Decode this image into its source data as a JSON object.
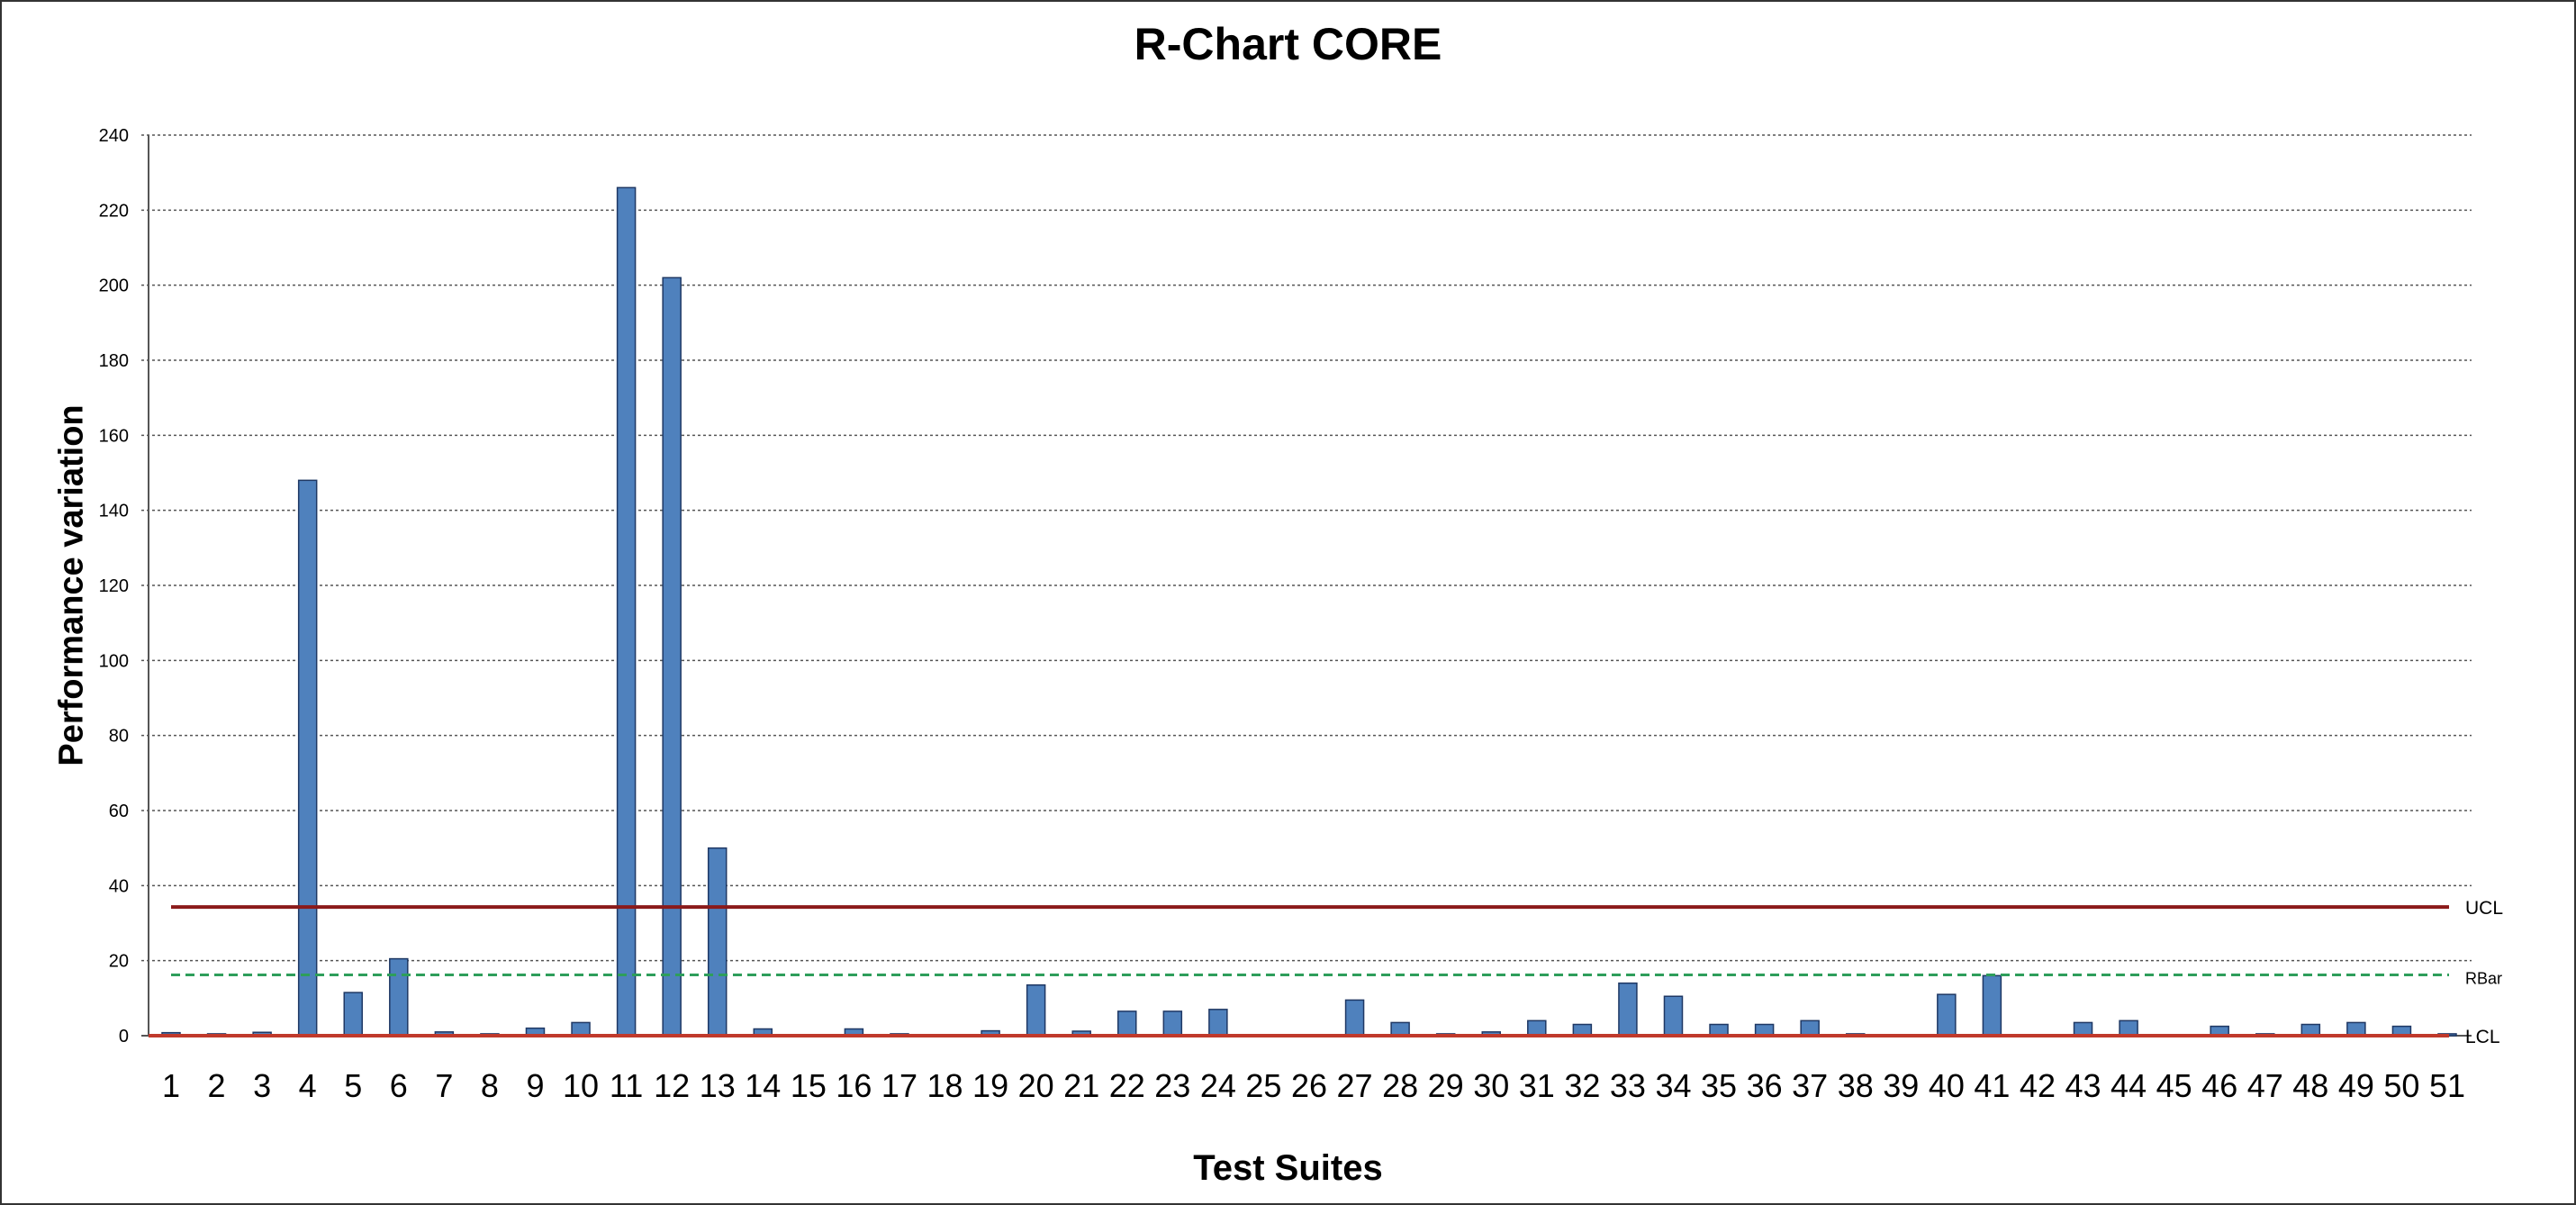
{
  "chart_data": {
    "type": "bar",
    "title": "R-Chart CORE",
    "xlabel": "Test Suites",
    "ylabel": "Performance variation",
    "ylim": [
      0,
      240
    ],
    "yticks": [
      0,
      20,
      40,
      60,
      80,
      100,
      120,
      140,
      160,
      180,
      200,
      220,
      240
    ],
    "grid": true,
    "categories": [
      "1",
      "2",
      "3",
      "4",
      "5",
      "6",
      "7",
      "8",
      "9",
      "10",
      "11",
      "12",
      "13",
      "14",
      "15",
      "16",
      "17",
      "18",
      "19",
      "20",
      "21",
      "22",
      "23",
      "24",
      "25",
      "26",
      "27",
      "28",
      "29",
      "30",
      "31",
      "32",
      "33",
      "34",
      "35",
      "36",
      "37",
      "38",
      "39",
      "40",
      "41",
      "42",
      "43",
      "44",
      "45",
      "46",
      "47",
      "48",
      "49",
      "50",
      "51"
    ],
    "series": [
      {
        "values": [
          0.8,
          0.5,
          0.9,
          148,
          11.5,
          20.5,
          1.0,
          0.5,
          2.0,
          3.5,
          226,
          202,
          50,
          1.8,
          0.1,
          1.8,
          0.5,
          0.3,
          1.3,
          13.5,
          1.2,
          6.5,
          6.5,
          7.0,
          0.3,
          0.3,
          9.5,
          3.5,
          0.5,
          1.0,
          4.0,
          3.0,
          14.0,
          10.5,
          3.0,
          3.0,
          4.0,
          0.5,
          0.3,
          11.0,
          16.0,
          0.3,
          3.5,
          4.0,
          0.3,
          2.5,
          0.5,
          3.0,
          3.5,
          2.5,
          0.5
        ],
        "color": "#4f81bd",
        "border": "#1f3864"
      }
    ],
    "control_lines": [
      {
        "name": "UCL",
        "value": 34.3,
        "color": "#8b1a1a",
        "style": "solid"
      },
      {
        "name": "RBar",
        "value": 16.2,
        "color": "#2e9e5b",
        "style": "dashed"
      },
      {
        "name": "LCL",
        "value": 0,
        "color": "#c0392b",
        "style": "solid"
      }
    ]
  }
}
